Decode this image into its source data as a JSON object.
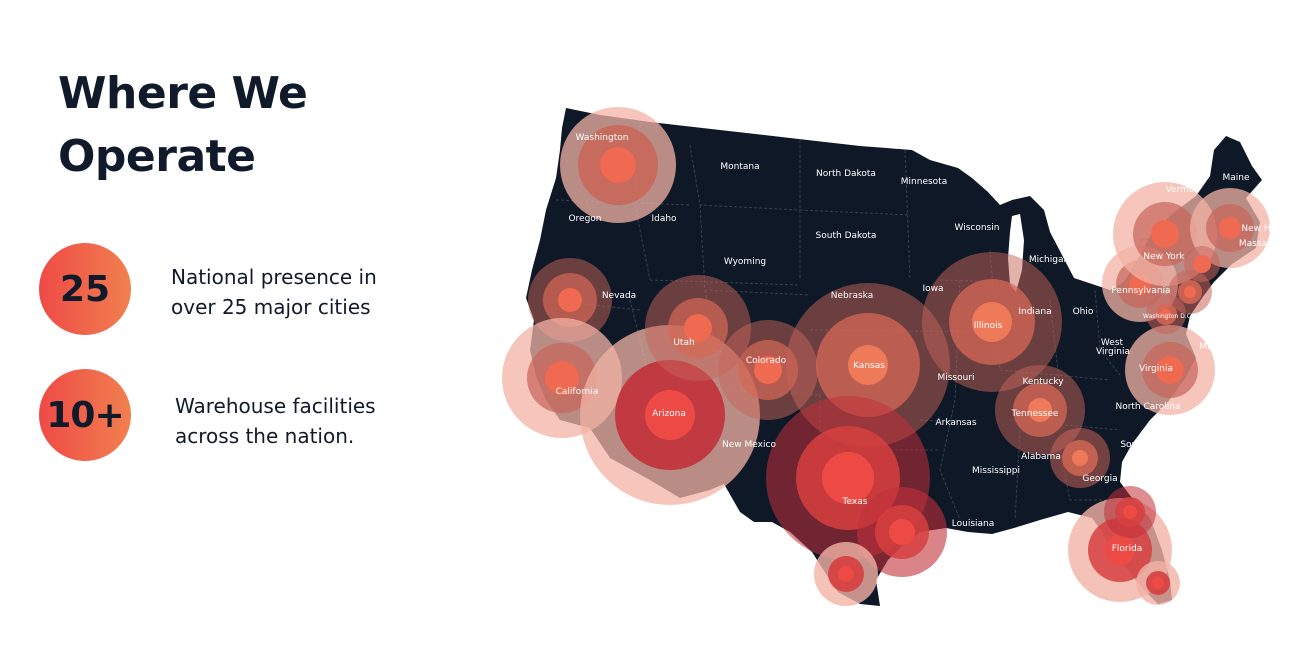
{
  "headline": {
    "line1": "Where We",
    "line2": "Operate"
  },
  "stats": [
    {
      "value": "25",
      "line1": "National presence in",
      "line2": "over 25 major cities"
    },
    {
      "value": "10+",
      "line1": "Warehouse facilities",
      "line2": "across the nation."
    }
  ],
  "map": {
    "land_color": "#0f1827",
    "border_color": "#3b4659",
    "states": {
      "washington": "Washington",
      "oregon": "Oregon",
      "idaho": "Idaho",
      "montana": "Montana",
      "north_dakota": "North Dakota",
      "south_dakota": "South Dakota",
      "minnesota": "Minnesota",
      "wisconsin": "Wisconsin",
      "michigan": "Michigan",
      "wyoming": "Wyoming",
      "nevada": "Nevada",
      "utah": "Utah",
      "colorado": "Colorado",
      "nebraska": "Nebraska",
      "iowa": "Iowa",
      "illinois": "Illinois",
      "indiana": "Indiana",
      "ohio": "Ohio",
      "california": "California",
      "arizona": "Arizona",
      "new_mexico": "New Mexico",
      "kansas": "Kansas",
      "missouri": "Missouri",
      "kentucky": "Kentucky",
      "tennessee": "Tennessee",
      "arkansas": "Arkansas",
      "mississippi": "Mississippi",
      "alabama": "Alabama",
      "georgia": "Georgia",
      "texas": "Texas",
      "louisiana": "Louisiana",
      "florida": "Florida",
      "west_virginia_1": "West",
      "west_virginia_2": "Virginia",
      "virginia": "Virginia",
      "north_carolina": "North Carolina",
      "south_carolina": "South C",
      "pennsylvania": "Pennsylvania",
      "new_york": "New York",
      "vermont": "Vermo",
      "maine": "Maine",
      "new_hampshire": "New H",
      "massachusetts": "Massa",
      "washington_dc": "Washington D.C",
      "maryland": "Ma"
    }
  }
}
